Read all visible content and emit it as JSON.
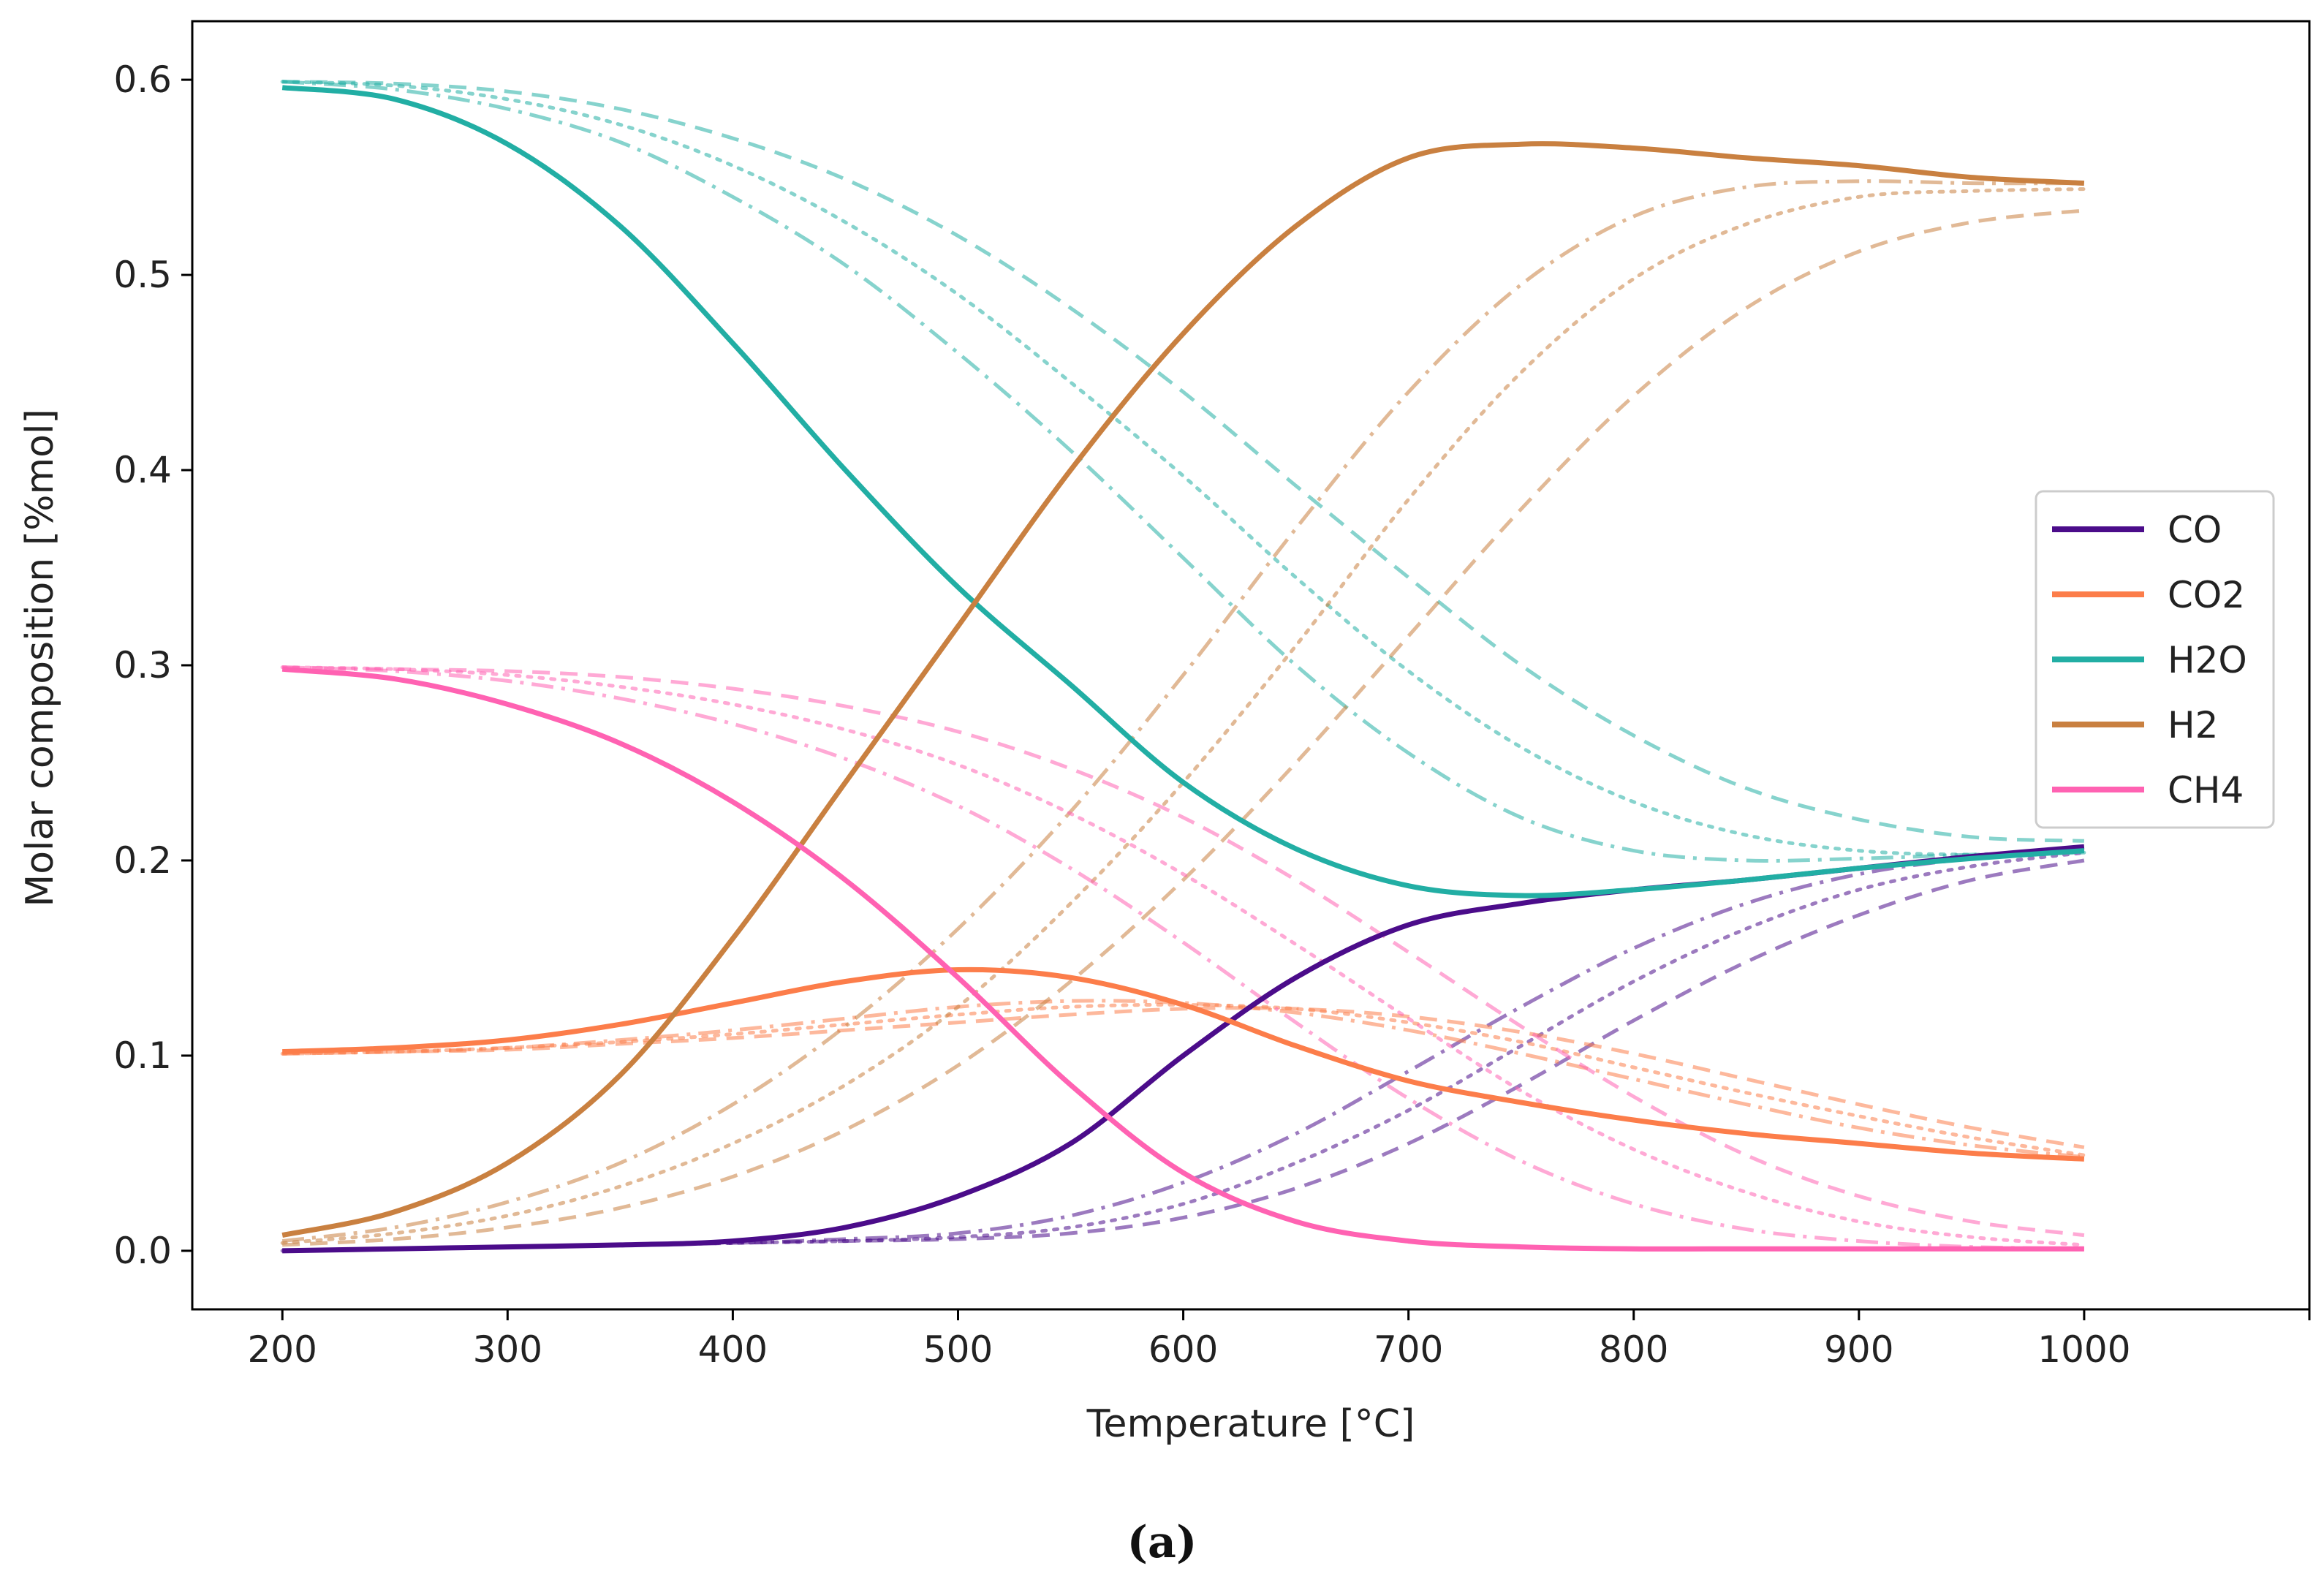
{
  "chart_data": {
    "type": "line",
    "title": "",
    "xlabel": "Temperature [°C]",
    "ylabel": "Molar composition [%mol]",
    "xlim": [
      160,
      1100
    ],
    "ylim": [
      -0.03,
      0.63
    ],
    "xticks": [
      200,
      300,
      400,
      500,
      600,
      700,
      800,
      900,
      1000
    ],
    "xtick_labels": [
      "200",
      "300",
      "400",
      "500",
      "600",
      "700",
      "800",
      "900",
      "1000"
    ],
    "yticks": [
      0.0,
      0.1,
      0.2,
      0.3,
      0.4,
      0.5,
      0.6
    ],
    "ytick_labels": [
      "0.0",
      "0.1",
      "0.2",
      "0.3",
      "0.4",
      "0.5",
      "0.6"
    ],
    "grid": false,
    "legend_position": "right",
    "x": [
      200,
      250,
      300,
      350,
      400,
      450,
      500,
      550,
      600,
      650,
      700,
      750,
      800,
      850,
      900,
      950,
      1000
    ],
    "species": [
      {
        "name": "CO",
        "color": "#4b0c8a"
      },
      {
        "name": "CO2",
        "color": "#fc7d4a"
      },
      {
        "name": "H2O",
        "color": "#22aea4"
      },
      {
        "name": "H2",
        "color": "#c98040"
      },
      {
        "name": "CH4",
        "color": "#ff62b2"
      }
    ],
    "series": [
      {
        "name": "CO",
        "species": "CO",
        "style": "solid",
        "values": [
          0.0,
          0.001,
          0.002,
          0.003,
          0.005,
          0.012,
          0.028,
          0.055,
          0.1,
          0.14,
          0.167,
          0.178,
          0.185,
          0.19,
          0.196,
          0.202,
          0.207
        ]
      },
      {
        "name": "CO2",
        "species": "CO2",
        "style": "solid",
        "values": [
          0.102,
          0.104,
          0.108,
          0.116,
          0.127,
          0.138,
          0.144,
          0.14,
          0.126,
          0.105,
          0.087,
          0.076,
          0.067,
          0.06,
          0.055,
          0.05,
          0.047
        ]
      },
      {
        "name": "H2O",
        "species": "H2O",
        "style": "solid",
        "values": [
          0.596,
          0.59,
          0.567,
          0.525,
          0.465,
          0.4,
          0.34,
          0.29,
          0.24,
          0.206,
          0.187,
          0.182,
          0.185,
          0.19,
          0.196,
          0.201,
          0.205
        ]
      },
      {
        "name": "H2",
        "species": "H2",
        "style": "solid",
        "values": [
          0.008,
          0.02,
          0.045,
          0.09,
          0.16,
          0.24,
          0.32,
          0.4,
          0.47,
          0.525,
          0.56,
          0.567,
          0.565,
          0.56,
          0.556,
          0.55,
          0.547
        ]
      },
      {
        "name": "CH4",
        "species": "CH4",
        "style": "solid",
        "values": [
          0.298,
          0.293,
          0.28,
          0.26,
          0.23,
          0.19,
          0.14,
          0.085,
          0.04,
          0.015,
          0.005,
          0.002,
          0.001,
          0.001,
          0.001,
          0.001,
          0.001
        ]
      },
      {
        "name": "CO",
        "species": "CO",
        "style": "dashdot",
        "values": [
          0.0,
          0.001,
          0.002,
          0.003,
          0.004,
          0.006,
          0.009,
          0.018,
          0.035,
          0.06,
          0.092,
          0.125,
          0.155,
          0.178,
          0.193,
          0.201,
          0.205
        ]
      },
      {
        "name": "CO",
        "species": "CO",
        "style": "dotted",
        "values": [
          0.0,
          0.001,
          0.002,
          0.003,
          0.004,
          0.005,
          0.007,
          0.012,
          0.024,
          0.045,
          0.072,
          0.105,
          0.138,
          0.165,
          0.185,
          0.197,
          0.204
        ]
      },
      {
        "name": "CO",
        "species": "CO",
        "style": "dashed",
        "values": [
          0.0,
          0.001,
          0.002,
          0.003,
          0.004,
          0.005,
          0.006,
          0.009,
          0.017,
          0.032,
          0.055,
          0.085,
          0.118,
          0.148,
          0.172,
          0.19,
          0.2
        ]
      },
      {
        "name": "CO2",
        "species": "CO2",
        "style": "dashdot",
        "values": [
          0.101,
          0.102,
          0.104,
          0.108,
          0.113,
          0.119,
          0.125,
          0.128,
          0.127,
          0.122,
          0.113,
          0.101,
          0.088,
          0.075,
          0.063,
          0.054,
          0.048
        ]
      },
      {
        "name": "CO2",
        "species": "CO2",
        "style": "dotted",
        "values": [
          0.101,
          0.102,
          0.104,
          0.107,
          0.111,
          0.116,
          0.121,
          0.125,
          0.126,
          0.124,
          0.117,
          0.107,
          0.094,
          0.081,
          0.069,
          0.058,
          0.049
        ]
      },
      {
        "name": "CO2",
        "species": "CO2",
        "style": "dashed",
        "values": [
          0.101,
          0.102,
          0.103,
          0.106,
          0.109,
          0.113,
          0.117,
          0.121,
          0.124,
          0.124,
          0.12,
          0.112,
          0.101,
          0.088,
          0.075,
          0.063,
          0.053
        ]
      },
      {
        "name": "H2O",
        "species": "H2O",
        "style": "dashdot",
        "values": [
          0.599,
          0.595,
          0.585,
          0.568,
          0.54,
          0.505,
          0.46,
          0.41,
          0.355,
          0.3,
          0.255,
          0.222,
          0.205,
          0.2,
          0.201,
          0.203,
          0.205
        ]
      },
      {
        "name": "H2O",
        "species": "H2O",
        "style": "dotted",
        "values": [
          0.599,
          0.597,
          0.59,
          0.577,
          0.556,
          0.527,
          0.49,
          0.445,
          0.397,
          0.345,
          0.297,
          0.258,
          0.23,
          0.213,
          0.205,
          0.203,
          0.204
        ]
      },
      {
        "name": "H2O",
        "species": "H2O",
        "style": "dashed",
        "values": [
          0.599,
          0.598,
          0.594,
          0.585,
          0.57,
          0.549,
          0.52,
          0.483,
          0.44,
          0.392,
          0.345,
          0.3,
          0.264,
          0.237,
          0.221,
          0.212,
          0.21
        ]
      },
      {
        "name": "H2",
        "species": "H2",
        "style": "dashdot",
        "values": [
          0.005,
          0.012,
          0.025,
          0.045,
          0.075,
          0.115,
          0.165,
          0.225,
          0.295,
          0.37,
          0.44,
          0.495,
          0.53,
          0.545,
          0.548,
          0.547,
          0.547
        ]
      },
      {
        "name": "H2",
        "species": "H2",
        "style": "dotted",
        "values": [
          0.004,
          0.009,
          0.018,
          0.033,
          0.055,
          0.085,
          0.125,
          0.178,
          0.24,
          0.31,
          0.385,
          0.45,
          0.498,
          0.526,
          0.54,
          0.543,
          0.544
        ]
      },
      {
        "name": "H2",
        "species": "H2",
        "style": "dashed",
        "values": [
          0.003,
          0.006,
          0.012,
          0.022,
          0.038,
          0.062,
          0.095,
          0.138,
          0.19,
          0.25,
          0.315,
          0.38,
          0.438,
          0.483,
          0.512,
          0.527,
          0.533
        ]
      },
      {
        "name": "CH4",
        "species": "CH4",
        "style": "dashdot",
        "values": [
          0.299,
          0.297,
          0.292,
          0.283,
          0.27,
          0.252,
          0.228,
          0.196,
          0.158,
          0.117,
          0.078,
          0.046,
          0.024,
          0.011,
          0.005,
          0.002,
          0.001
        ]
      },
      {
        "name": "CH4",
        "species": "CH4",
        "style": "dotted",
        "values": [
          0.299,
          0.298,
          0.295,
          0.289,
          0.28,
          0.267,
          0.249,
          0.224,
          0.193,
          0.157,
          0.119,
          0.082,
          0.052,
          0.03,
          0.015,
          0.007,
          0.003
        ]
      },
      {
        "name": "CH4",
        "species": "CH4",
        "style": "dashed",
        "values": [
          0.299,
          0.298,
          0.297,
          0.294,
          0.288,
          0.279,
          0.266,
          0.247,
          0.222,
          0.19,
          0.153,
          0.115,
          0.079,
          0.049,
          0.028,
          0.015,
          0.008
        ]
      }
    ],
    "caption": "(a)"
  }
}
